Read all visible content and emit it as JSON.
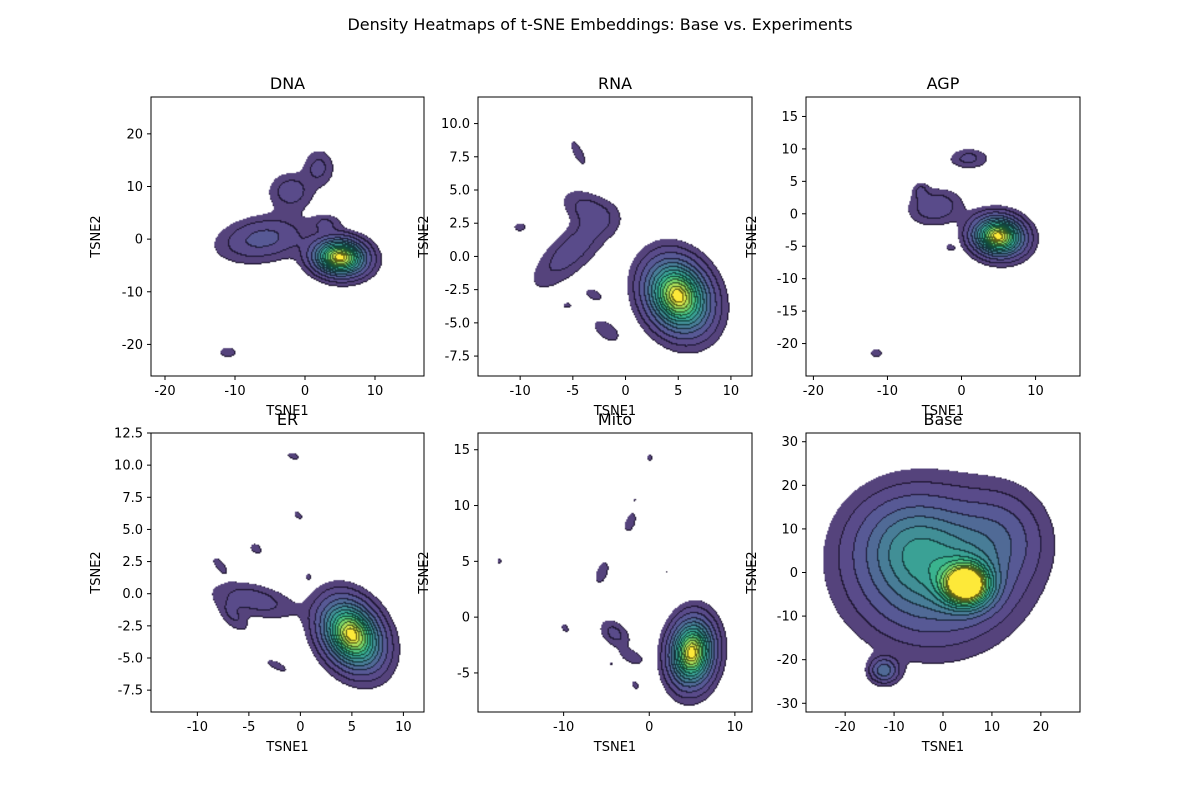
{
  "figure": {
    "title": "Density Heatmaps of t-SNE Embeddings: Base vs. Experiments"
  },
  "chart_data": [
    {
      "type": "heatmap",
      "title": "DNA",
      "xlabel": "TSNE1",
      "ylabel": "TSNE2",
      "xlim": [
        -22,
        17
      ],
      "ylim": [
        -26,
        27
      ],
      "xticks": [
        -20,
        -10,
        0,
        10
      ],
      "yticks": [
        -20,
        -10,
        0,
        10,
        20
      ],
      "blobs": [
        {
          "cx": 5,
          "cy": -3.5,
          "rx": 4.2,
          "ry": 3.8,
          "rot": -20,
          "peak": 1.0
        },
        {
          "cx": -6,
          "cy": 0,
          "rx": 7,
          "ry": 4.5,
          "rot": 15,
          "peak": 0.18
        },
        {
          "cx": -2,
          "cy": 9,
          "rx": 3.5,
          "ry": 4,
          "rot": 0,
          "peak": 0.12
        },
        {
          "cx": 2,
          "cy": 13.5,
          "rx": 2.5,
          "ry": 4,
          "rot": 0,
          "peak": 0.1
        },
        {
          "cx": 3,
          "cy": 3,
          "rx": 2.5,
          "ry": 2,
          "rot": 0,
          "peak": 0.08
        },
        {
          "cx": -11,
          "cy": -21.5,
          "rx": 1.6,
          "ry": 1.4,
          "rot": 0,
          "peak": 0.07
        }
      ]
    },
    {
      "type": "heatmap",
      "title": "RNA",
      "xlabel": "TSNE1",
      "ylabel": "TSNE2",
      "xlim": [
        -14,
        12
      ],
      "ylim": [
        -9,
        12
      ],
      "xticks": [
        -10,
        -5,
        0,
        5,
        10
      ],
      "yticks": [
        -7.5,
        -5.0,
        -2.5,
        0.0,
        2.5,
        5.0,
        7.5,
        10.0
      ],
      "blobs": [
        {
          "cx": 5,
          "cy": -3,
          "rx": 3.5,
          "ry": 2.8,
          "rot": -30,
          "peak": 1.0
        },
        {
          "cx": -5,
          "cy": 0.5,
          "rx": 5,
          "ry": 1.8,
          "rot": 35,
          "peak": 0.12
        },
        {
          "cx": -3.5,
          "cy": 3.5,
          "rx": 3,
          "ry": 1.5,
          "rot": -20,
          "peak": 0.1
        },
        {
          "cx": -10,
          "cy": 2.2,
          "rx": 0.9,
          "ry": 0.5,
          "rot": 0,
          "peak": 0.06
        },
        {
          "cx": -4.5,
          "cy": 7.8,
          "rx": 1.5,
          "ry": 0.6,
          "rot": -55,
          "peak": 0.07
        },
        {
          "cx": -3,
          "cy": -2.9,
          "rx": 1.3,
          "ry": 0.6,
          "rot": -15,
          "peak": 0.06
        },
        {
          "cx": -5.5,
          "cy": -3.7,
          "rx": 0.7,
          "ry": 0.4,
          "rot": 0,
          "peak": 0.05
        },
        {
          "cx": -1.8,
          "cy": -5.6,
          "rx": 1.8,
          "ry": 0.9,
          "rot": -25,
          "peak": 0.07
        }
      ]
    },
    {
      "type": "heatmap",
      "title": "AGP",
      "xlabel": "TSNE1",
      "ylabel": "TSNE2",
      "xlim": [
        -21,
        16
      ],
      "ylim": [
        -25,
        18
      ],
      "xticks": [
        -20,
        -10,
        0,
        10
      ],
      "yticks": [
        -20,
        -15,
        -10,
        -5,
        0,
        5,
        10,
        15
      ],
      "blobs": [
        {
          "cx": 5,
          "cy": -3.5,
          "rx": 3.8,
          "ry": 3.3,
          "rot": -15,
          "peak": 1.0
        },
        {
          "cx": -3.5,
          "cy": 1,
          "rx": 4,
          "ry": 3,
          "rot": 10,
          "peak": 0.14
        },
        {
          "cx": 1,
          "cy": 8.5,
          "rx": 3,
          "ry": 1.8,
          "rot": 0,
          "peak": 0.1
        },
        {
          "cx": -5.5,
          "cy": 3.5,
          "rx": 1.3,
          "ry": 1.6,
          "rot": 0,
          "peak": 0.08
        },
        {
          "cx": -1.5,
          "cy": -5.2,
          "rx": 0.9,
          "ry": 0.7,
          "rot": -30,
          "peak": 0.06
        },
        {
          "cx": -11.5,
          "cy": -21.5,
          "rx": 1.3,
          "ry": 1,
          "rot": 0,
          "peak": 0.06
        }
      ]
    },
    {
      "type": "heatmap",
      "title": "ER",
      "xlabel": "TSNE1",
      "ylabel": "TSNE2",
      "xlim": [
        -14.5,
        12
      ],
      "ylim": [
        -9.2,
        12.5
      ],
      "xticks": [
        -10,
        -5,
        0,
        5,
        10
      ],
      "yticks": [
        -7.5,
        -5.0,
        -2.5,
        0.0,
        2.5,
        5.0,
        7.5,
        10.0,
        12.5
      ],
      "blobs": [
        {
          "cx": 5,
          "cy": -3.2,
          "rx": 3.5,
          "ry": 2.6,
          "rot": -35,
          "peak": 1.0
        },
        {
          "cx": -4.5,
          "cy": -0.5,
          "rx": 4.5,
          "ry": 1.4,
          "rot": -10,
          "peak": 0.12
        },
        {
          "cx": -6.5,
          "cy": -1.8,
          "rx": 2,
          "ry": 1,
          "rot": -35,
          "peak": 0.08
        },
        {
          "cx": -2.3,
          "cy": -5.6,
          "rx": 1.6,
          "ry": 0.5,
          "rot": -20,
          "peak": 0.06
        },
        {
          "cx": -7.8,
          "cy": 2.2,
          "rx": 1.3,
          "ry": 0.6,
          "rot": -40,
          "peak": 0.06
        },
        {
          "cx": -4.3,
          "cy": 3.5,
          "rx": 0.9,
          "ry": 0.6,
          "rot": -20,
          "peak": 0.06
        },
        {
          "cx": -0.2,
          "cy": 6.1,
          "rx": 0.8,
          "ry": 0.5,
          "rot": -30,
          "peak": 0.05
        },
        {
          "cx": 0.8,
          "cy": 1.3,
          "rx": 0.4,
          "ry": 0.4,
          "rot": 0,
          "peak": 0.05
        },
        {
          "cx": -0.7,
          "cy": 10.7,
          "rx": 1.1,
          "ry": 0.5,
          "rot": -10,
          "peak": 0.05
        }
      ]
    },
    {
      "type": "heatmap",
      "title": "Mito",
      "xlabel": "TSNE1",
      "ylabel": "TSNE2",
      "xlim": [
        -20,
        12
      ],
      "ylim": [
        -8.5,
        16.5
      ],
      "xticks": [
        -10,
        0,
        10
      ],
      "yticks": [
        -5,
        0,
        5,
        10,
        15
      ],
      "blobs": [
        {
          "cx": 5,
          "cy": -3.2,
          "rx": 2.8,
          "ry": 3.3,
          "rot": -15,
          "peak": 1.0
        },
        {
          "cx": -4,
          "cy": -1.5,
          "rx": 2.2,
          "ry": 1.3,
          "rot": -25,
          "peak": 0.1
        },
        {
          "cx": -2,
          "cy": -3.6,
          "rx": 1.8,
          "ry": 0.8,
          "rot": -15,
          "peak": 0.07
        },
        {
          "cx": -5.5,
          "cy": 4,
          "rx": 0.9,
          "ry": 1.5,
          "rot": -30,
          "peak": 0.07
        },
        {
          "cx": -2.2,
          "cy": 8.5,
          "rx": 0.9,
          "ry": 1.5,
          "rot": -30,
          "peak": 0.06
        },
        {
          "cx": -17.5,
          "cy": 5,
          "rx": 0.45,
          "ry": 0.5,
          "rot": 0,
          "peak": 0.05
        },
        {
          "cx": -9.8,
          "cy": -1.0,
          "rx": 0.9,
          "ry": 0.6,
          "rot": -30,
          "peak": 0.05
        },
        {
          "cx": 0.1,
          "cy": 14.3,
          "rx": 0.6,
          "ry": 0.6,
          "rot": 0,
          "peak": 0.05
        },
        {
          "cx": -1.7,
          "cy": 10.5,
          "rx": 0.35,
          "ry": 0.35,
          "rot": 0,
          "peak": 0.04
        },
        {
          "cx": -1.6,
          "cy": -6.1,
          "rx": 0.9,
          "ry": 0.6,
          "rot": -30,
          "peak": 0.05
        },
        {
          "cx": -4.4,
          "cy": -4.2,
          "rx": 0.5,
          "ry": 0.4,
          "rot": 0,
          "peak": 0.04
        },
        {
          "cx": 2.1,
          "cy": 4.1,
          "rx": 0.3,
          "ry": 0.3,
          "rot": 0,
          "peak": 0.04
        }
      ]
    },
    {
      "type": "heatmap",
      "title": "Base",
      "xlabel": "TSNE1",
      "ylabel": "TSNE2",
      "xlim": [
        -28,
        28
      ],
      "ylim": [
        -32,
        32
      ],
      "xticks": [
        -20,
        -10,
        0,
        10,
        20
      ],
      "yticks": [
        -30,
        -20,
        -10,
        0,
        10,
        20,
        30
      ],
      "blobs": [
        {
          "cx": 5,
          "cy": -3,
          "rx": 6,
          "ry": 6,
          "rot": 0,
          "peak": 1.0
        },
        {
          "cx": -2,
          "cy": 1,
          "rx": 17,
          "ry": 17,
          "rot": 0,
          "peak": 0.5
        },
        {
          "cx": -8,
          "cy": 8,
          "rx": 12,
          "ry": 12,
          "rot": 0,
          "peak": 0.15
        },
        {
          "cx": 12,
          "cy": 8,
          "rx": 10,
          "ry": 12,
          "rot": 0,
          "peak": 0.15
        },
        {
          "cx": -12,
          "cy": -22.5,
          "rx": 3.2,
          "ry": 3.2,
          "rot": 0,
          "peak": 0.3
        }
      ]
    }
  ]
}
